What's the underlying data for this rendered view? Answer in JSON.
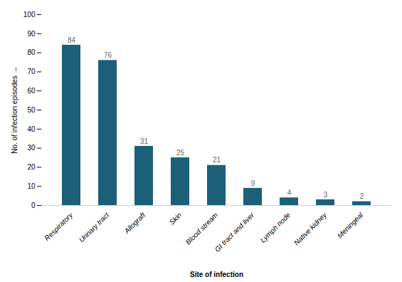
{
  "chart_data": {
    "type": "bar",
    "categories": [
      "Respiratory",
      "Urinary tract",
      "Allograft",
      "Skin",
      "Blood stream",
      "GI tract and liver",
      "Lymph node",
      "Native kidney",
      "Meningeal"
    ],
    "values": [
      84,
      76,
      31,
      25,
      21,
      9,
      4,
      3,
      2
    ],
    "color": "#1c5f78",
    "xlabel": "Site of infection",
    "ylabel": "No. of infection episodes",
    "ylim": [
      0,
      100
    ],
    "yticks": [
      0,
      10,
      20,
      30,
      40,
      50,
      60,
      70,
      80,
      90,
      100
    ],
    "grid": false,
    "data_labels": true
  }
}
